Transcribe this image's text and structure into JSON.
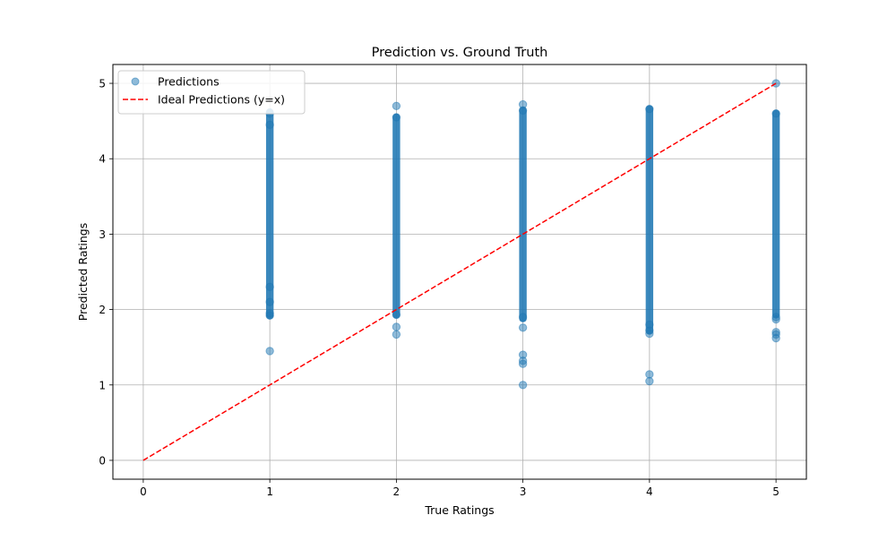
{
  "chart_data": {
    "type": "scatter",
    "title": "Prediction vs. Ground Truth",
    "xlabel": "True Ratings",
    "ylabel": "Predicted Ratings",
    "xlim": [
      -0.24,
      5.24
    ],
    "ylim": [
      -0.25,
      5.25
    ],
    "xticks": [
      0,
      1,
      2,
      3,
      4,
      5
    ],
    "yticks": [
      0,
      1,
      2,
      3,
      4,
      5
    ],
    "grid": true,
    "legend_position": "top-left",
    "series": [
      {
        "name": "Predictions",
        "kind": "scatter",
        "color": "#1f77b4",
        "dense_ranges": [
          {
            "x": 1,
            "y_min": 1.92,
            "y_max": 4.62
          },
          {
            "x": 2,
            "y_min": 1.93,
            "y_max": 4.55
          },
          {
            "x": 3,
            "y_min": 1.88,
            "y_max": 4.64
          },
          {
            "x": 4,
            "y_min": 1.72,
            "y_max": 4.66
          },
          {
            "x": 5,
            "y_min": 1.93,
            "y_max": 4.6
          }
        ],
        "points": [
          [
            1,
            1.45
          ],
          [
            1,
            1.92
          ],
          [
            1,
            1.95
          ],
          [
            1,
            2.1
          ],
          [
            1,
            2.3
          ],
          [
            1,
            4.45
          ],
          [
            1,
            4.6
          ],
          [
            2,
            1.67
          ],
          [
            2,
            1.77
          ],
          [
            2,
            1.93
          ],
          [
            2,
            4.55
          ],
          [
            2,
            4.7
          ],
          [
            3,
            1.0
          ],
          [
            3,
            1.28
          ],
          [
            3,
            1.32
          ],
          [
            3,
            1.4
          ],
          [
            3,
            1.76
          ],
          [
            3,
            1.9
          ],
          [
            3,
            4.64
          ],
          [
            3,
            4.72
          ],
          [
            4,
            1.05
          ],
          [
            4,
            1.14
          ],
          [
            4,
            1.68
          ],
          [
            4,
            1.72
          ],
          [
            4,
            1.8
          ],
          [
            4,
            4.66
          ],
          [
            5,
            1.62
          ],
          [
            5,
            1.67
          ],
          [
            5,
            1.7
          ],
          [
            5,
            1.87
          ],
          [
            5,
            1.9
          ],
          [
            5,
            4.6
          ],
          [
            5,
            5.0
          ]
        ]
      },
      {
        "name": "Ideal Predictions (y=x)",
        "kind": "line",
        "color": "#ff0000",
        "dashed": true,
        "x": [
          0,
          5
        ],
        "y": [
          0,
          5
        ]
      }
    ]
  }
}
